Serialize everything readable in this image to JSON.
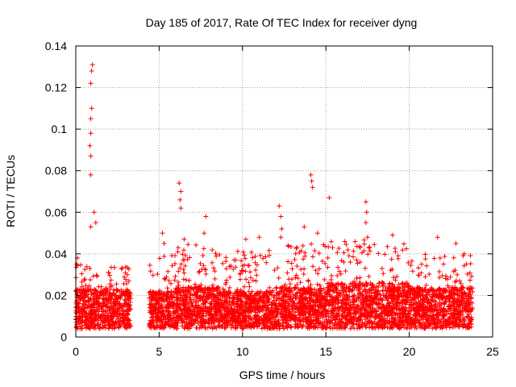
{
  "chart_data": {
    "type": "scatter",
    "title": "Day 185 of 2017, Rate Of TEC Index for receiver dyng",
    "xlabel": "GPS time / hours",
    "ylabel": "ROTI / TECUs",
    "xlim": [
      0,
      25
    ],
    "ylim": [
      0,
      0.14
    ],
    "xticks": [
      0,
      5,
      10,
      15,
      20,
      25
    ],
    "xtick_labels": [
      "0",
      "5",
      "10",
      "15",
      "20",
      "25"
    ],
    "yticks": [
      0,
      0.02,
      0.04,
      0.06,
      0.08,
      0.1,
      0.12,
      0.14
    ],
    "ytick_labels": [
      "0",
      "0.02",
      "0.04",
      "0.06",
      "0.08",
      "0.1",
      "0.12",
      "0.14"
    ],
    "grid": true,
    "marker": "+",
    "color": "#ff0000",
    "data_gap_hours": [
      3.3,
      4.4
    ],
    "notable_points": [
      {
        "x": 1.0,
        "y": 0.131
      },
      {
        "x": 0.95,
        "y": 0.128
      },
      {
        "x": 0.9,
        "y": 0.122
      },
      {
        "x": 0.95,
        "y": 0.11
      },
      {
        "x": 0.9,
        "y": 0.105
      },
      {
        "x": 0.9,
        "y": 0.098
      },
      {
        "x": 0.85,
        "y": 0.092
      },
      {
        "x": 0.9,
        "y": 0.087
      },
      {
        "x": 0.9,
        "y": 0.078
      },
      {
        "x": 1.1,
        "y": 0.06
      },
      {
        "x": 1.2,
        "y": 0.055
      },
      {
        "x": 0.9,
        "y": 0.053
      },
      {
        "x": 0.05,
        "y": 0.035
      },
      {
        "x": 0.1,
        "y": 0.038
      },
      {
        "x": 6.2,
        "y": 0.074
      },
      {
        "x": 6.3,
        "y": 0.07
      },
      {
        "x": 6.25,
        "y": 0.066
      },
      {
        "x": 6.3,
        "y": 0.062
      },
      {
        "x": 7.8,
        "y": 0.058
      },
      {
        "x": 7.7,
        "y": 0.05
      },
      {
        "x": 5.2,
        "y": 0.05
      },
      {
        "x": 5.3,
        "y": 0.045
      },
      {
        "x": 6.5,
        "y": 0.047
      },
      {
        "x": 10.2,
        "y": 0.047
      },
      {
        "x": 11.0,
        "y": 0.048
      },
      {
        "x": 9.6,
        "y": 0.037
      },
      {
        "x": 12.2,
        "y": 0.063
      },
      {
        "x": 12.3,
        "y": 0.058
      },
      {
        "x": 12.35,
        "y": 0.052
      },
      {
        "x": 12.3,
        "y": 0.048
      },
      {
        "x": 13.7,
        "y": 0.053
      },
      {
        "x": 14.1,
        "y": 0.078
      },
      {
        "x": 14.15,
        "y": 0.075
      },
      {
        "x": 14.2,
        "y": 0.072
      },
      {
        "x": 14.5,
        "y": 0.05
      },
      {
        "x": 15.2,
        "y": 0.067
      },
      {
        "x": 15.4,
        "y": 0.043
      },
      {
        "x": 17.4,
        "y": 0.065
      },
      {
        "x": 17.45,
        "y": 0.06
      },
      {
        "x": 17.4,
        "y": 0.055
      },
      {
        "x": 17.5,
        "y": 0.048
      },
      {
        "x": 19.0,
        "y": 0.049
      },
      {
        "x": 21.7,
        "y": 0.048
      },
      {
        "x": 22.8,
        "y": 0.045
      },
      {
        "x": 23.3,
        "y": 0.04
      }
    ],
    "activity_profile": [
      {
        "x_range": [
          0.0,
          3.3
        ],
        "base_max": 0.023,
        "peak_max": 0.035
      },
      {
        "x_range": [
          4.4,
          6.0
        ],
        "base_max": 0.022,
        "peak_max": 0.04
      },
      {
        "x_range": [
          6.0,
          9.0
        ],
        "base_max": 0.024,
        "peak_max": 0.045
      },
      {
        "x_range": [
          9.0,
          12.0
        ],
        "base_max": 0.022,
        "peak_max": 0.042
      },
      {
        "x_range": [
          12.0,
          15.0
        ],
        "base_max": 0.024,
        "peak_max": 0.045
      },
      {
        "x_range": [
          15.0,
          20.0
        ],
        "base_max": 0.026,
        "peak_max": 0.047
      },
      {
        "x_range": [
          20.0,
          23.8
        ],
        "base_max": 0.024,
        "peak_max": 0.04
      }
    ]
  }
}
